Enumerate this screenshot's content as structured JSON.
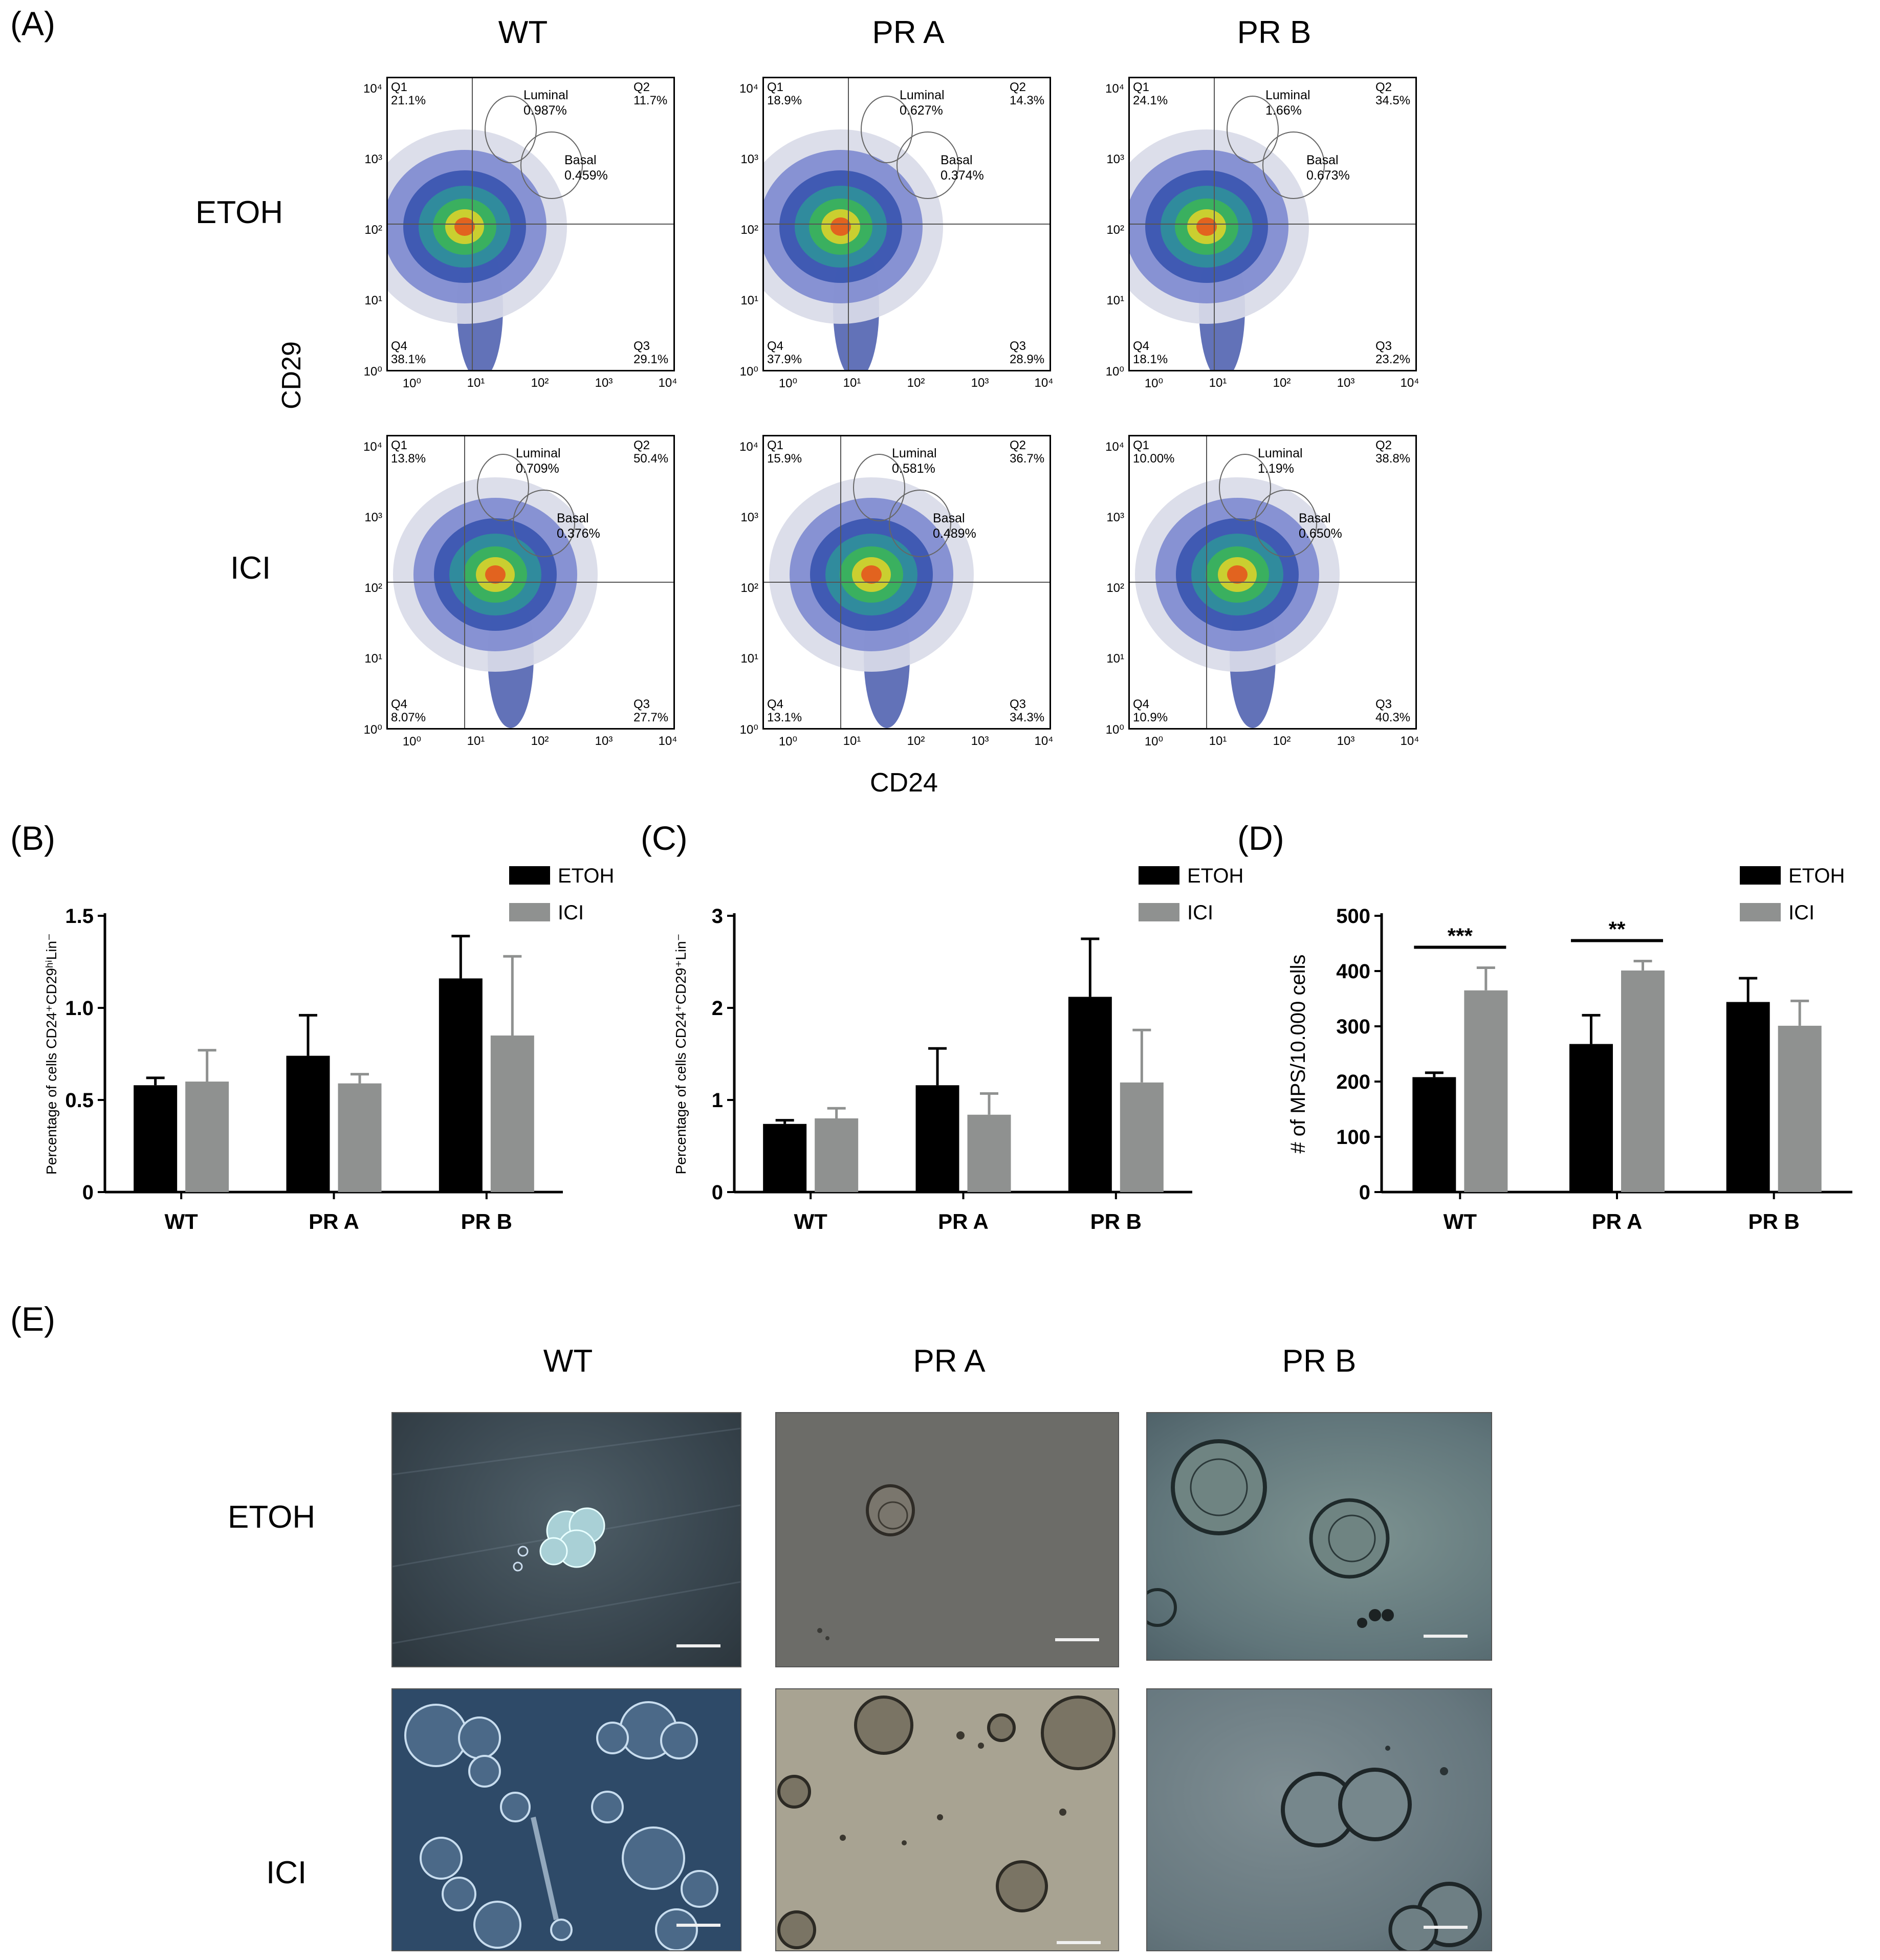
{
  "panel_labels": {
    "a": "(A)",
    "b": "(B)",
    "c": "(C)",
    "d": "(D)",
    "e": "(E)"
  },
  "facs": {
    "col_headers": [
      "WT",
      "PR A",
      "PR B"
    ],
    "row_labels": [
      "ETOH",
      "ICI"
    ],
    "y_axis_title": "CD29",
    "x_axis_title": "CD24",
    "gate_names": {
      "luminal": "Luminal",
      "basal": "Basal"
    },
    "quadrant_names": [
      "Q1",
      "Q2",
      "Q3",
      "Q4"
    ],
    "panels": [
      {
        "id": "etoh-wt",
        "q1": "21.1%",
        "q2": "11.7%",
        "q3": "29.1%",
        "q4": "38.1%",
        "luminal": "0.987%",
        "basal": "0.459%"
      },
      {
        "id": "etoh-pra",
        "q1": "18.9%",
        "q2": "14.3%",
        "q3": "28.9%",
        "q4": "37.9%",
        "luminal": "0.627%",
        "basal": "0.374%"
      },
      {
        "id": "etoh-prb",
        "q1": "24.1%",
        "q2": "34.5%",
        "q3": "23.2%",
        "q4": "18.1%",
        "luminal": "1.66%",
        "basal": "0.673%"
      },
      {
        "id": "ici-wt",
        "q1": "13.8%",
        "q2": "50.4%",
        "q3": "27.7%",
        "q4": "8.07%",
        "luminal": "0.709%",
        "basal": "0.376%"
      },
      {
        "id": "ici-pra",
        "q1": "15.9%",
        "q2": "36.7%",
        "q3": "34.3%",
        "q4": "13.1%",
        "luminal": "0.581%",
        "basal": "0.489%"
      },
      {
        "id": "ici-prb",
        "q1": "10.00%",
        "q2": "38.8%",
        "q3": "40.3%",
        "q4": "10.9%",
        "luminal": "1.19%",
        "basal": "0.650%"
      }
    ],
    "y_ticks": [
      "10⁴",
      "10³",
      "10²",
      "10¹",
      "10⁰"
    ],
    "x_ticks": [
      "10⁰",
      "10¹",
      "10²",
      "10³",
      "10⁴"
    ]
  },
  "chart_data": [
    {
      "id": "B",
      "type": "bar",
      "categories": [
        "WT",
        "PR A",
        "PR B"
      ],
      "series": [
        {
          "name": "ETOH",
          "values": [
            0.58,
            0.74,
            1.16
          ],
          "errors": [
            0.04,
            0.22,
            0.23
          ],
          "color": "#000000"
        },
        {
          "name": "ICI",
          "values": [
            0.6,
            0.59,
            0.85
          ],
          "errors": [
            0.17,
            0.05,
            0.43
          ],
          "color": "#8f9190"
        }
      ],
      "ylabel": "Percentage of cells CD24⁺CD29ʰⁱLin⁻",
      "ylim": [
        0,
        1.5
      ],
      "yticks": [
        "0",
        "0.5",
        "1.0",
        "1.5"
      ],
      "legend": "top-right"
    },
    {
      "id": "C",
      "type": "bar",
      "categories": [
        "WT",
        "PR A",
        "PR B"
      ],
      "series": [
        {
          "name": "ETOH",
          "values": [
            0.74,
            1.16,
            2.12
          ],
          "errors": [
            0.04,
            0.4,
            0.63
          ],
          "color": "#000000"
        },
        {
          "name": "ICI",
          "values": [
            0.8,
            0.84,
            1.19
          ],
          "errors": [
            0.11,
            0.23,
            0.57
          ],
          "color": "#8f9190"
        }
      ],
      "ylabel": "Percentage of cells CD24⁺CD29⁺Lin⁻",
      "ylim": [
        0,
        3
      ],
      "yticks": [
        "0",
        "1",
        "2",
        "3"
      ],
      "legend": "top-right"
    },
    {
      "id": "D",
      "type": "bar",
      "categories": [
        "WT",
        "PR A",
        "PR B"
      ],
      "series": [
        {
          "name": "ETOH",
          "values": [
            208,
            268,
            344
          ],
          "errors": [
            8,
            52,
            43
          ],
          "color": "#000000"
        },
        {
          "name": "ICI",
          "values": [
            365,
            401,
            301
          ],
          "errors": [
            41,
            17,
            45
          ],
          "color": "#8f9190"
        }
      ],
      "ylabel": "# of MPS/10.000 cells",
      "ylim": [
        0,
        500
      ],
      "yticks": [
        "0",
        "100",
        "200",
        "300",
        "400",
        "500"
      ],
      "significance": [
        {
          "category": "WT",
          "label": "***"
        },
        {
          "category": "PR A",
          "label": "**"
        }
      ],
      "legend": "top-right"
    }
  ],
  "micrographs": {
    "col_headers": [
      "WT",
      "PR A",
      "PR B"
    ],
    "row_labels": [
      "ETOH",
      "ICI"
    ]
  }
}
